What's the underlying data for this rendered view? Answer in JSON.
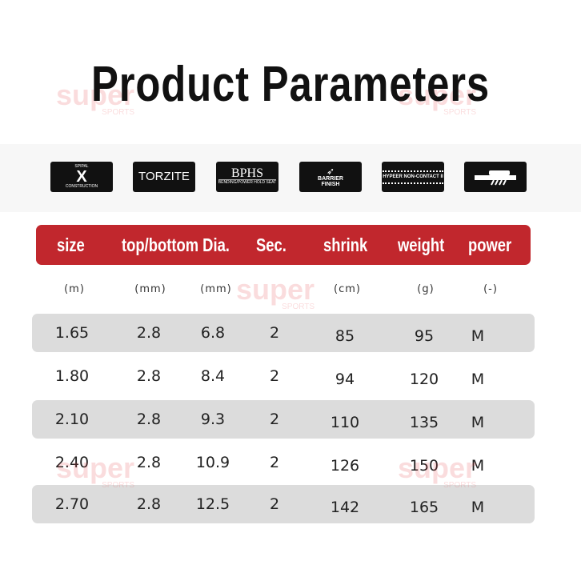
{
  "title": "Product Parameters",
  "watermark": "super SPORTS",
  "badges": [
    {
      "top": "SPIPAL",
      "main": "X",
      "bottom": "CONSTRUCTION",
      "icon": "spiral-x-icon"
    },
    {
      "main": "TORZITE",
      "icon": "torzite-ring-icon"
    },
    {
      "main": "BPHS",
      "bottom": "BENDING/POWER HOLD SEAT",
      "icon": "bphs-icon"
    },
    {
      "main": "BARRIER FINISH",
      "icon": "barrier-finish-icon"
    },
    {
      "main": "HYPEER NON-CONTACT II",
      "icon": "non-contact-icon"
    },
    {
      "icon": "reel-seat-icon"
    }
  ],
  "table": {
    "headers": [
      "size",
      "top/bottom Dia.",
      "Sec.",
      "shrink",
      "weight",
      "power"
    ],
    "units": [
      "(m)",
      "(mm)",
      "(mm)",
      "(cm)",
      "(g)",
      "(-)"
    ],
    "rows": [
      [
        "1.65",
        "2.8",
        "6.8",
        "2",
        "85",
        "95",
        "M"
      ],
      [
        "1.80",
        "2.8",
        "8.4",
        "2",
        "94",
        "120",
        "M"
      ],
      [
        "2.10",
        "2.8",
        "9.3",
        "2",
        "110",
        "135",
        "M"
      ],
      [
        "2.40",
        "2.8",
        "10.9",
        "2",
        "126",
        "150",
        "M"
      ],
      [
        "2.70",
        "2.8",
        "12.5",
        "2",
        "142",
        "165",
        "M"
      ]
    ]
  },
  "colors": {
    "header": "#c1272d",
    "row_stripe": "#dcdcdc",
    "watermark": "#e8454a"
  }
}
